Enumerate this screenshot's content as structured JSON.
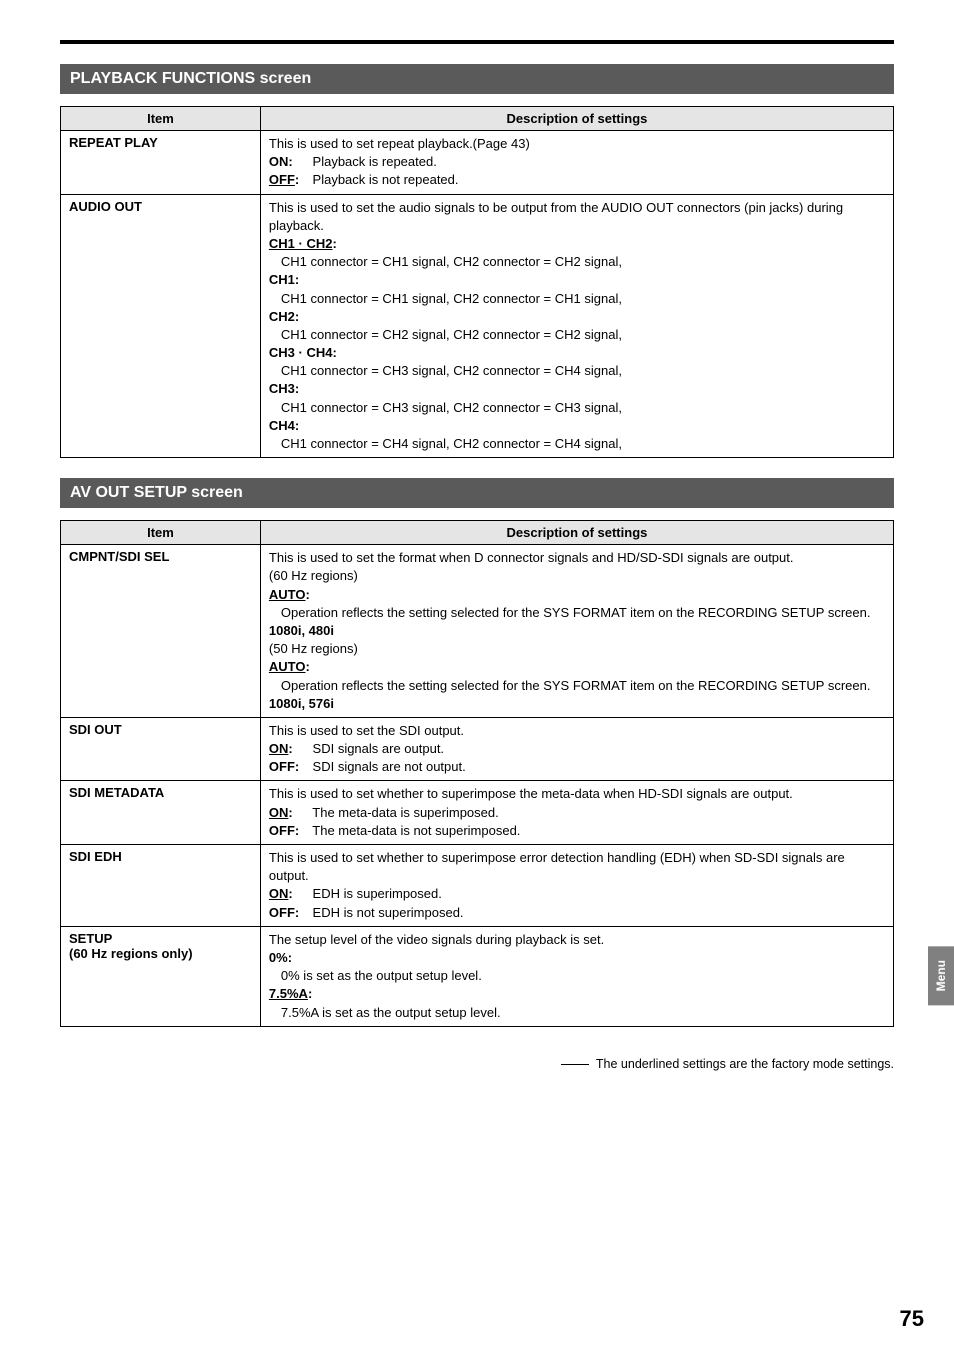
{
  "sections": [
    {
      "title": "PLAYBACK FUNCTIONS screen",
      "table": {
        "headers": [
          "Item",
          "Description of settings"
        ],
        "rows": [
          {
            "item": "REPEAT PLAY",
            "desc": [
              {
                "t": "This is used to set repeat playback.(Page 43)"
              },
              {
                "kv": [
                  {
                    "k": "ON:",
                    "v": "Playback is repeated."
                  }
                ]
              },
              {
                "kv": [
                  {
                    "k_u": "OFF:",
                    "v": "Playback is not repeated."
                  }
                ]
              }
            ]
          },
          {
            "item": "AUDIO OUT",
            "desc": [
              {
                "t": "This is used to set the audio signals to be output from the AUDIO OUT connectors (pin jacks) during playback."
              },
              {
                "b_u": "CH1 · CH2:"
              },
              {
                "i": "CH1 connector = CH1 signal, CH2 connector = CH2 signal,"
              },
              {
                "b": "CH1:"
              },
              {
                "i": "CH1 connector = CH1 signal, CH2 connector = CH1 signal,"
              },
              {
                "b": "CH2:"
              },
              {
                "i": "CH1 connector = CH2 signal, CH2 connector = CH2 signal,"
              },
              {
                "b": "CH3 · CH4:"
              },
              {
                "i": "CH1 connector = CH3 signal, CH2 connector = CH4 signal,"
              },
              {
                "b": "CH3:"
              },
              {
                "i": "CH1 connector = CH3 signal, CH2 connector = CH3 signal,"
              },
              {
                "b": "CH4:"
              },
              {
                "i": "CH1 connector = CH4 signal, CH2 connector = CH4 signal,"
              }
            ]
          }
        ]
      }
    },
    {
      "title": "AV OUT SETUP screen",
      "table": {
        "headers": [
          "Item",
          "Description of settings"
        ],
        "rows": [
          {
            "item": "CMPNT/SDI SEL",
            "desc": [
              {
                "t": "This is used to set the format when D connector signals and HD/SD-SDI signals are output."
              },
              {
                "t": "(60 Hz regions)"
              },
              {
                "b_u": "AUTO:"
              },
              {
                "i": "Operation reflects the setting selected for the SYS FORMAT item on the RECORDING SETUP screen."
              },
              {
                "b": "1080i, 480i"
              },
              {
                "t": "(50 Hz regions)"
              },
              {
                "b_u": "AUTO:"
              },
              {
                "i": "Operation reflects the setting selected for the SYS FORMAT item on the RECORDING SETUP screen."
              },
              {
                "b": "1080i, 576i"
              }
            ]
          },
          {
            "item": "SDI OUT",
            "desc": [
              {
                "t": "This is used to set the SDI output."
              },
              {
                "kv": [
                  {
                    "k_u": "ON:",
                    "v": "SDI signals are output."
                  }
                ]
              },
              {
                "kv": [
                  {
                    "k": "OFF:",
                    "v": "SDI signals are not output."
                  }
                ]
              }
            ]
          },
          {
            "item": "SDI METADATA",
            "desc": [
              {
                "t": "This is used to set whether to superimpose the meta-data when HD-SDI signals are output."
              },
              {
                "kv": [
                  {
                    "k_u": "ON:",
                    "v": "The meta-data is superimposed."
                  }
                ]
              },
              {
                "kv": [
                  {
                    "k": "OFF:",
                    "v": "The meta-data is not superimposed."
                  }
                ]
              }
            ]
          },
          {
            "item": "SDI EDH",
            "desc": [
              {
                "t": "This is used to set whether to superimpose error detection handling (EDH) when SD-SDI signals are output."
              },
              {
                "kv": [
                  {
                    "k_u": "ON:",
                    "v": "EDH is superimposed."
                  }
                ]
              },
              {
                "kv": [
                  {
                    "k": "OFF:",
                    "v": "EDH is not superimposed."
                  }
                ]
              }
            ]
          },
          {
            "item": "SETUP\n(60 Hz regions only)",
            "desc": [
              {
                "t": "The setup level of the video signals during playback is set."
              },
              {
                "b": "0%:"
              },
              {
                "i": "0% is set as the output setup level."
              },
              {
                "b_u": "7.5%A:"
              },
              {
                "i": "7.5%A is set as the output setup level."
              }
            ]
          }
        ]
      }
    }
  ],
  "footer_note": "The underlined settings are the factory mode settings.",
  "side_tab": "Menu",
  "page_num": "75"
}
